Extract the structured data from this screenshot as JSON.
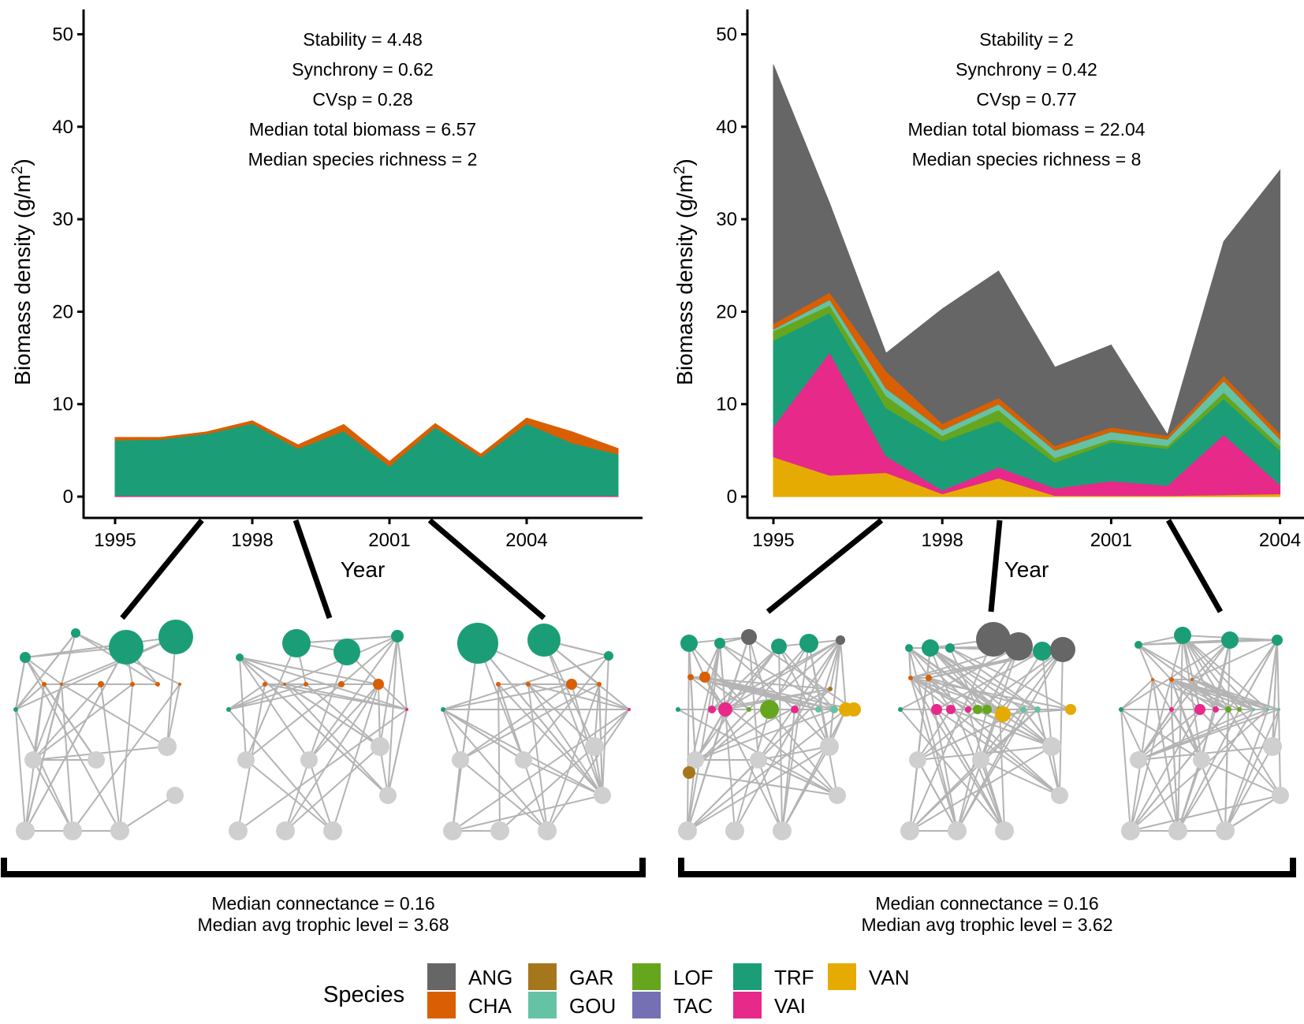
{
  "chart_data": [
    {
      "type": "area",
      "stacked": true,
      "x": [
        1995,
        1996,
        1997,
        1998,
        1999,
        2000,
        2001,
        2002,
        2003,
        2004,
        2005,
        2006
      ],
      "xticks": [
        "1995",
        "1998",
        "2001",
        "2004"
      ],
      "xlabel": "Year",
      "ylabel": "Biomass density (g/m2)",
      "ylim": [
        0,
        52
      ],
      "yticks": [
        0,
        10,
        20,
        30,
        40,
        50
      ],
      "series": [
        {
          "name": "VAI",
          "values": [
            0.1,
            0.1,
            0.1,
            0.1,
            0.1,
            0.1,
            0.1,
            0.1,
            0.1,
            0.1,
            0.1,
            0.1
          ]
        },
        {
          "name": "TRF",
          "values": [
            6.0,
            6.1,
            6.7,
            7.8,
            5.1,
            7.0,
            3.2,
            7.4,
            4.2,
            7.8,
            5.7,
            4.5
          ]
        },
        {
          "name": "CHA",
          "values": [
            0.3,
            0.2,
            0.2,
            0.3,
            0.4,
            0.7,
            0.5,
            0.4,
            0.3,
            0.6,
            1.2,
            0.6
          ]
        }
      ],
      "annotations": [
        "Stability = 4.48",
        "Synchrony = 0.62",
        "CVsp = 0.28",
        "Median total biomass = 6.57",
        "Median species richness = 2"
      ],
      "network_summary": [
        "Median connectance = 0.16",
        "Median avg trophic level = 3.68"
      ]
    },
    {
      "type": "area",
      "stacked": true,
      "x": [
        1995,
        1996,
        1997,
        1998,
        1999,
        2000,
        2001,
        2002,
        2003,
        2004
      ],
      "xticks": [
        "1995",
        "1998",
        "2001",
        "2004"
      ],
      "xlabel": "Year",
      "ylabel": "Biomass density (g/m2)",
      "ylim": [
        0,
        52
      ],
      "yticks": [
        0,
        10,
        20,
        30,
        40,
        50
      ],
      "series": [
        {
          "name": "VAN",
          "values": [
            4.3,
            2.3,
            2.6,
            0.3,
            2.0,
            0.1,
            0.1,
            0.1,
            0.2,
            0.3
          ]
        },
        {
          "name": "VAI",
          "values": [
            3.3,
            13.3,
            1.8,
            0.4,
            1.2,
            0.8,
            1.6,
            1.1,
            6.5,
            1.0
          ]
        },
        {
          "name": "TRF",
          "values": [
            9.3,
            4.3,
            5.2,
            5.3,
            5.0,
            2.8,
            4.2,
            4.0,
            3.9,
            3.7
          ]
        },
        {
          "name": "LOF",
          "values": [
            1.0,
            0.8,
            1.3,
            0.6,
            1.2,
            0.5,
            0.3,
            0.3,
            0.7,
            0.5
          ]
        },
        {
          "name": "GOU",
          "values": [
            0.2,
            0.6,
            0.8,
            0.6,
            0.6,
            0.8,
            0.8,
            0.7,
            1.2,
            0.7
          ]
        },
        {
          "name": "GAR",
          "values": [
            0.1,
            0.1,
            0.1,
            0.1,
            0.1,
            0.1,
            0.1,
            0.1,
            0.1,
            0.1
          ]
        },
        {
          "name": "CHA",
          "values": [
            0.5,
            0.7,
            1.8,
            0.6,
            0.6,
            0.4,
            0.4,
            0.3,
            0.5,
            0.5
          ]
        },
        {
          "name": "ANG",
          "values": [
            28.0,
            9.6,
            1.9,
            12.4,
            13.7,
            8.5,
            8.9,
            0.1,
            14.5,
            28.5
          ]
        }
      ],
      "annotations": [
        "Stability = 2",
        "Synchrony = 0.42",
        "CVsp = 0.77",
        "Median total biomass = 22.04",
        "Median species richness = 8"
      ],
      "network_summary": [
        "Median connectance = 0.16",
        "Median avg trophic level = 3.62"
      ]
    }
  ],
  "legend": {
    "title": "Species",
    "items": [
      {
        "name": "ANG",
        "color": "#666666"
      },
      {
        "name": "CHA",
        "color": "#D95F02"
      },
      {
        "name": "GAR",
        "color": "#A6761D"
      },
      {
        "name": "GOU",
        "color": "#66C2A5"
      },
      {
        "name": "LOF",
        "color": "#66A61E"
      },
      {
        "name": "TAC",
        "color": "#7570B3"
      },
      {
        "name": "TRF",
        "color": "#1B9E77"
      },
      {
        "name": "VAI",
        "color": "#E7298A"
      },
      {
        "name": "VAN",
        "color": "#E6AB02"
      }
    ]
  },
  "colors": {
    "axis": "#000000",
    "network_edge": "#B4B4B4",
    "network_node": "#CFCFCF"
  }
}
